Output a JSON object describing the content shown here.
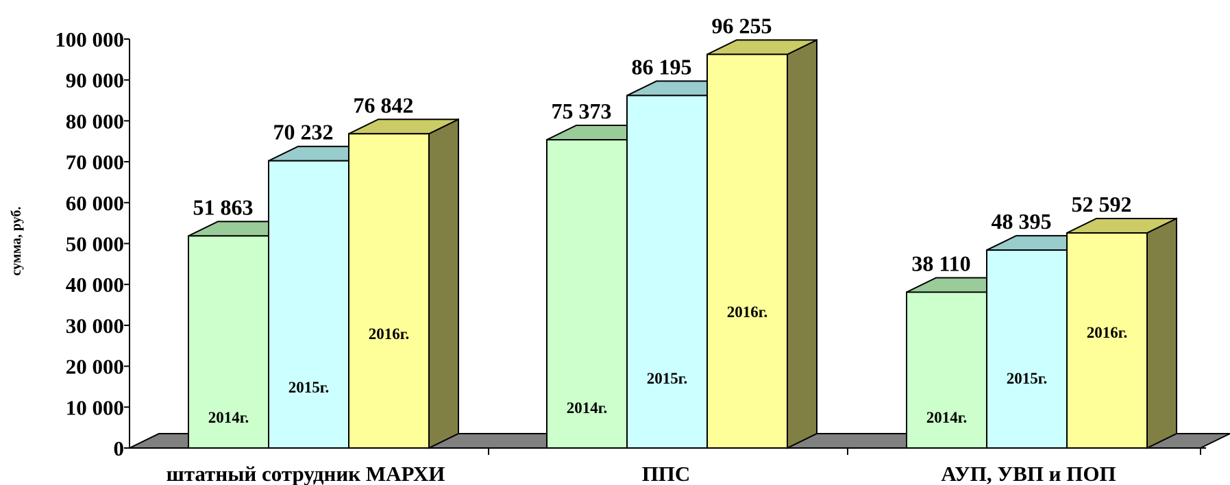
{
  "chart_data": {
    "type": "bar",
    "ylabel": "сумма, руб.",
    "ylim": [
      0,
      100000
    ],
    "y_ticks": [
      "0",
      "10 000",
      "20 000",
      "30 000",
      "40 000",
      "50 000",
      "60 000",
      "70 000",
      "80 000",
      "90 000",
      "100 000"
    ],
    "categories": [
      "штатный сотрудник  МАРХИ",
      "ППС",
      "АУП, УВП и ПОП"
    ],
    "series": [
      {
        "name": "2014г.",
        "values": [
          51863,
          75373,
          38110
        ],
        "value_labels": [
          "51 863",
          "75 373",
          "38 110"
        ],
        "color": "#ccffcc",
        "top_color": "#99cc99"
      },
      {
        "name": "2015г.",
        "values": [
          70232,
          86195,
          48395
        ],
        "value_labels": [
          "70 232",
          "86 195",
          "48 395"
        ],
        "color": "#ccffff",
        "top_color": "#99cccc"
      },
      {
        "name": "2016г.",
        "values": [
          76842,
          96255,
          52592
        ],
        "value_labels": [
          "76 842",
          "96 255",
          "52 592"
        ],
        "color": "#ffff99",
        "top_color": "#cccc66",
        "side_color": "#808045"
      }
    ],
    "floor_color": "#808080",
    "grid": false,
    "legend": "none",
    "bar_style": "3d"
  }
}
